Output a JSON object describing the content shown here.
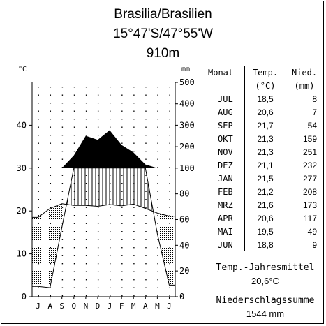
{
  "title": "Brasilia/Brasilien",
  "coords": "15°47'S/47°55'W",
  "elevation": "910m",
  "table": {
    "headers": {
      "month": "Monat",
      "temp": "Temp.",
      "temp_unit": "(°C)",
      "prec": "Nied.",
      "prec_unit": "(mm)"
    },
    "rows": [
      {
        "month": "JUL",
        "temp": "18,5",
        "prec": "8"
      },
      {
        "month": "AUG",
        "temp": "20,6",
        "prec": "7"
      },
      {
        "month": "SEP",
        "temp": "21,7",
        "prec": "54"
      },
      {
        "month": "OKT",
        "temp": "21,3",
        "prec": "159"
      },
      {
        "month": "NOV",
        "temp": "21,3",
        "prec": "251"
      },
      {
        "month": "DEZ",
        "temp": "21,1",
        "prec": "232"
      },
      {
        "month": "JAN",
        "temp": "21,5",
        "prec": "277"
      },
      {
        "month": "FEB",
        "temp": "21,2",
        "prec": "208"
      },
      {
        "month": "MRZ",
        "temp": "21,6",
        "prec": "173"
      },
      {
        "month": "APR",
        "temp": "20,6",
        "prec": "117"
      },
      {
        "month": "MAI",
        "temp": "19,5",
        "prec": "49"
      },
      {
        "month": "JUN",
        "temp": "18,8",
        "prec": "9"
      }
    ]
  },
  "summary": {
    "mean_label": "Temp.-Jahresmittel",
    "mean_value": "20,6°C",
    "prec_label": "Niederschlagssumme",
    "prec_value": "1544 mm"
  },
  "chart_data": {
    "type": "line",
    "left_axis_unit": "°C",
    "right_axis_unit": "mm",
    "left_ticks": [
      "0",
      "10",
      "20",
      "30",
      "40"
    ],
    "right_ticks": [
      "0",
      "20",
      "40",
      "60",
      "80",
      "100",
      "200",
      "300",
      "400",
      "500"
    ],
    "categories": [
      "J",
      "A",
      "S",
      "O",
      "N",
      "D",
      "J",
      "F",
      "M",
      "A",
      "M",
      "J"
    ],
    "temperature": [
      18.5,
      20.6,
      21.7,
      21.3,
      21.3,
      21.1,
      21.5,
      21.2,
      21.6,
      20.6,
      19.5,
      18.8
    ],
    "precipitation": [
      8,
      7,
      54,
      159,
      251,
      232,
      277,
      208,
      173,
      117,
      49,
      9
    ],
    "ylim_temp": [
      0,
      50
    ],
    "ylim_prec_mm": [
      0,
      500
    ],
    "colors": {
      "line": "#000000",
      "humid_fill": "#000000",
      "background": "#ffffff"
    }
  }
}
